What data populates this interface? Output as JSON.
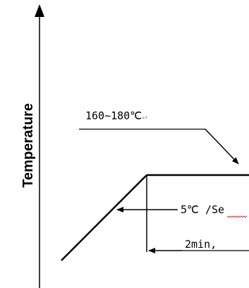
{
  "axis": {
    "y_label": "Temperature"
  },
  "annotations": {
    "peak_temp": "160~180℃",
    "peak_temp_mark": "↵",
    "ramp_rate": "5℃ /Se",
    "hold_time": "2min,"
  }
}
